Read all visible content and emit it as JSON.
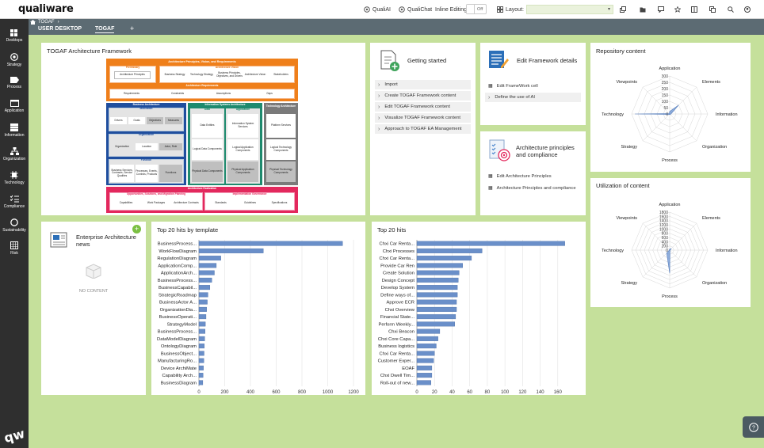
{
  "app": {
    "logo": "qualiware"
  },
  "toolbar": {
    "qualiai": "QualiAI",
    "qualichat": "QualiChat",
    "inline_editing": "Inline Editing:",
    "inline_state": "Off",
    "layout": "Layout:",
    "layout_value": ""
  },
  "sidebar": {
    "items": [
      {
        "label": "Desktops",
        "icon": "desktop-icon"
      },
      {
        "label": "Strategy",
        "icon": "target-icon"
      },
      {
        "label": "Process",
        "icon": "process-icon"
      },
      {
        "label": "Application",
        "icon": "application-icon"
      },
      {
        "label": "Information",
        "icon": "information-icon"
      },
      {
        "label": "Organization",
        "icon": "organization-icon"
      },
      {
        "label": "Technology",
        "icon": "technology-icon"
      },
      {
        "label": "Compliance",
        "icon": "compliance-icon"
      },
      {
        "label": "Sustainability",
        "icon": "sustainability-icon"
      },
      {
        "label": "Risk",
        "icon": "risk-icon"
      }
    ],
    "brand": "qw"
  },
  "breadcrumb": {
    "current": "TOGAF"
  },
  "tabs": [
    {
      "label": "USER DESKTOP"
    },
    {
      "label": "TOGAF"
    },
    {
      "label": "+"
    }
  ],
  "togaf": {
    "title": "TOGAF Architecture Framework",
    "principles_title": "Architecture Principles, Vision, and Requirements",
    "preliminary": "Preliminary",
    "arch_principles": "Architecture Principles",
    "vision": "Architecture Vision",
    "business_strategy": "Business Strategy",
    "tech_strategy": "Technology Strategy",
    "biz_principles": "Business Principles, Objectives, and Drivers",
    "arch_vision": "Architecture Vision",
    "stakeholders": "Stakeholders",
    "requirements_title": "Architecture Requirements",
    "requirements": "Requirements",
    "constraints": "Constraints",
    "assumptions": "Assumptions",
    "gaps": "Gaps",
    "business_arch": "Business Architecture",
    "motivation": "Motivation",
    "drivers": "Drivers",
    "goals": "Goals",
    "objectives": "Objectives",
    "measures": "Measures",
    "organization": "Organization",
    "org_unit": "Organization",
    "location": "Location",
    "actor_role": "Actor, Role",
    "function": "Function",
    "biz_services": "Business Services, Contracts, Service Qualities",
    "processes": "Processes, Events, Controls, Products",
    "functions": "Functions",
    "is_arch": "Information Systems Architecture",
    "data": "Data",
    "data_entities": "Data Entities",
    "logical_data": "Logical Data Components",
    "physical_data": "Physical Data Components",
    "application": "Application",
    "info_services": "Information System Services",
    "logical_app": "Logical Application Components",
    "physical_app": "Physical Application Components",
    "tech_arch": "Technology Architecture",
    "platform_services": "Platform Services",
    "logical_tech": "Logical Technology Components",
    "physical_tech": "Physical Technology Components",
    "realization": "Architecture Realization",
    "opportunities": "Opportunities, Solutions, and Migration Planning",
    "capabilities": "Capabilities",
    "work_packages": "Work Packages",
    "arch_contracts": "Architecture Contracts",
    "impl_governance": "Implementation Governance",
    "standards": "Standards",
    "guidelines": "Guidelines",
    "specifications": "Specifications"
  },
  "getting_started": {
    "title": "Getting started",
    "items": [
      "Import",
      "Create TOGAF Framework content",
      "Edit TOGAF Framework content",
      "Visualize TOGAF Framework content",
      "Approach to TOGAF EA Management"
    ]
  },
  "edit_framework": {
    "title": "Edit Framework details",
    "items": [
      "Edit FrameWork cell",
      "Define the use of AI"
    ]
  },
  "arch_principles": {
    "title1": "Architecture principles",
    "title2": "and compliance",
    "items": [
      "Edit Architecture Principles",
      "Architecture Principles and compliance"
    ]
  },
  "repository": {
    "title": "Repository content",
    "labels": [
      "Application",
      "Elements",
      "Information",
      "Organization",
      "Process",
      "Strategy",
      "Technology",
      "Viewpoints"
    ],
    "ticks": [
      "300",
      "250",
      "200",
      "150",
      "100",
      "50",
      "0"
    ]
  },
  "utilization": {
    "title": "Utilization of content",
    "labels": [
      "Application",
      "Elements",
      "Information",
      "Organization",
      "Process",
      "Strategy",
      "Technology",
      "Viewpoints"
    ],
    "ticks": [
      "1800",
      "1600",
      "1400",
      "1200",
      "1000",
      "800",
      "600",
      "400",
      "200",
      "0"
    ]
  },
  "news": {
    "title1": "Enterprise Architecture",
    "title2": "news",
    "empty": "NO CONTENT"
  },
  "chart_data": [
    {
      "type": "bar",
      "title": "Top 20 hits by template",
      "orientation": "horizontal",
      "categories": [
        "BusinessProcess...",
        "WorkFlowDiagram",
        "RegulationDiagram",
        "ApplicationComp...",
        "ApplicationArch...",
        "BusinessProcess...",
        "BusinessCapabil...",
        "StrategicRoadmap",
        "BusinessActor A...",
        "OrganizationDia...",
        "BusinessOperati...",
        "StrategyModel",
        "BusinessProcess...",
        "DataModelDiagram",
        "OntologyDiagram",
        "BusinessObject...",
        "ManufacturingRo...",
        "Device ArchiMate",
        "Capability Arch...",
        "BusinessDiagram"
      ],
      "values": [
        1115,
        500,
        170,
        135,
        120,
        100,
        85,
        70,
        65,
        60,
        55,
        50,
        48,
        45,
        42,
        40,
        38,
        35,
        32,
        30
      ],
      "xlim": [
        0,
        1200
      ],
      "ticks": [
        "0",
        "200",
        "400",
        "600",
        "800",
        "1000",
        "1200"
      ]
    },
    {
      "type": "bar",
      "title": "Top 20 hits",
      "orientation": "horizontal",
      "categories": [
        "Chxi Car Renta...",
        "Chxi Processes",
        "Chxi Car Renta...",
        "Provide Car Ren",
        "Create Solution",
        "Design Concept",
        "Develop System",
        "Define ways of...",
        "Approve ECR",
        "Chxi Overview",
        "Financial State...",
        "Perform Weekly...",
        "Chxi Beacon",
        "Chxi Core Capa...",
        "Business logistics",
        "Chxi Car Renta...",
        "Customer Exper...",
        "EOAF",
        "Chxi Dwell Tim...",
        "Roll-out of new..."
      ],
      "values": [
        168,
        74,
        62,
        52,
        48,
        47,
        46,
        46,
        45,
        45,
        44,
        43,
        26,
        24,
        22,
        20,
        19,
        17,
        17,
        16
      ],
      "xlim": [
        0,
        180
      ],
      "ticks": [
        "0",
        "20",
        "40",
        "60",
        "80",
        "100",
        "120",
        "140",
        "160"
      ]
    },
    {
      "type": "radar",
      "title": "Repository content",
      "categories": [
        "Application",
        "Elements",
        "Information",
        "Organization",
        "Process",
        "Strategy",
        "Technology",
        "Viewpoints"
      ],
      "values": [
        20,
        100,
        10,
        5,
        5,
        5,
        275,
        5
      ],
      "ylim": [
        0,
        300
      ]
    },
    {
      "type": "radar",
      "title": "Utilization of content",
      "categories": [
        "Application",
        "Elements",
        "Information",
        "Organization",
        "Process",
        "Strategy",
        "Technology",
        "Viewpoints"
      ],
      "values": [
        50,
        100,
        30,
        20,
        1100,
        200,
        20,
        20
      ],
      "ylim": [
        0,
        1800
      ]
    }
  ]
}
